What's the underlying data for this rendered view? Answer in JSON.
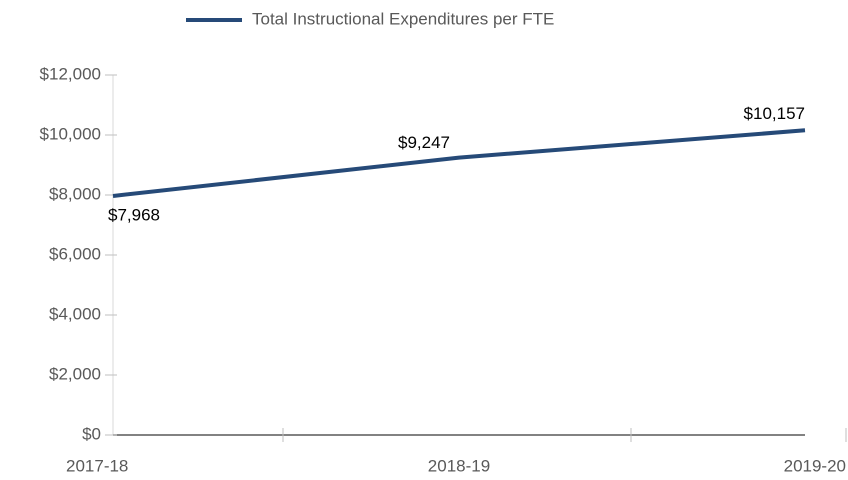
{
  "chart_data": {
    "type": "line",
    "categories": [
      "2017-18",
      "2018-19",
      "2019-20"
    ],
    "series": [
      {
        "name": "Total Instructional Expenditures per FTE",
        "color": "#264a78",
        "values": [
          7968,
          9247,
          10157
        ],
        "value_labels": [
          "$7,968",
          "$9,247",
          "$10,157"
        ]
      }
    ],
    "ylim": [
      0,
      12000
    ],
    "yticks": [
      {
        "value": 0,
        "label": "$0"
      },
      {
        "value": 2000,
        "label": "$2,000"
      },
      {
        "value": 4000,
        "label": "$4,000"
      },
      {
        "value": 6000,
        "label": "$6,000"
      },
      {
        "value": 8000,
        "label": "$8,000"
      },
      {
        "value": 10000,
        "label": "$10,000"
      },
      {
        "value": 12000,
        "label": "$12,000"
      }
    ],
    "legend": "top"
  }
}
